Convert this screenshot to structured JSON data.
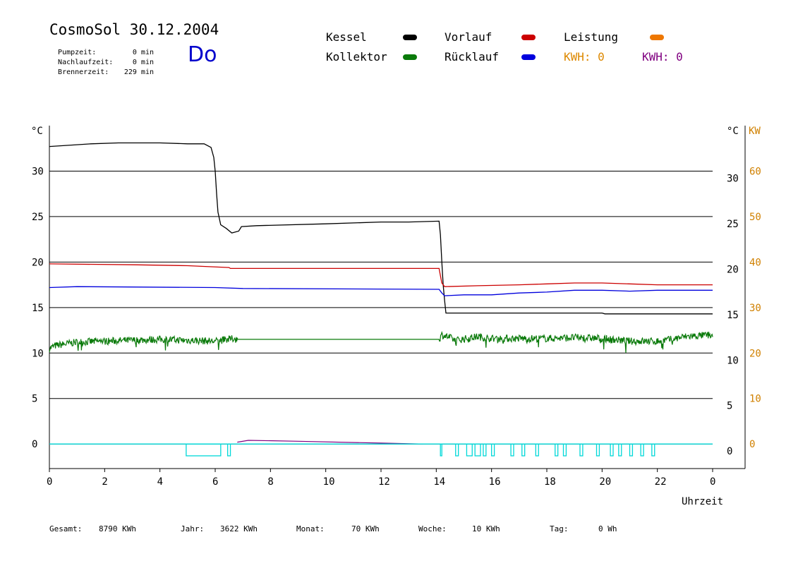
{
  "header": {
    "title": "CosmoSol 30.12.2004",
    "day": "Do",
    "stats": [
      {
        "label": "Pumpzeit:",
        "value": "0 min"
      },
      {
        "label": "Nachlaufzeit:",
        "value": "0 min"
      },
      {
        "label": "Brennerzeit:",
        "value": "229 min"
      }
    ]
  },
  "legend": {
    "kessel": "Kessel",
    "kollektor": "Kollektor",
    "vorlauf": "Vorlauf",
    "ruecklauf": "Rücklauf",
    "leistung": "Leistung",
    "kwh1": "KWH: 0",
    "kwh2": "KWH: 0"
  },
  "colors": {
    "kessel": "#000000",
    "kollektor": "#0a7a0a",
    "vorlauf": "#cc0000",
    "ruecklauf": "#0000dd",
    "leistung": "#ee7700",
    "kwh": "#dd8800",
    "kwh2": "#800080",
    "pump": "#00d8d8",
    "kwAxis": "#d08000"
  },
  "footer": {
    "gesamt_label": "Gesamt:",
    "gesamt": "8790 KWh",
    "jahr_label": "Jahr:",
    "jahr": "3622 KWh",
    "monat_label": "Monat:",
    "monat": "70 KWh",
    "woche_label": "Woche:",
    "woche": "10 KWh",
    "tag_label": "Tag:",
    "tag": "0 Wh"
  },
  "chart_data": {
    "type": "line",
    "xlabel": "Uhrzeit",
    "ylabel_left": "°C",
    "ylabel_right": "°C",
    "ylabel_kw": "KW",
    "xlim": [
      0,
      24
    ],
    "ylim": [
      -2.7,
      35
    ],
    "x_ticks": [
      "0",
      "2",
      "4",
      "6",
      "8",
      "10",
      "12",
      "14",
      "16",
      "18",
      "20",
      "22",
      "0"
    ],
    "y_ticks": [
      0,
      5,
      10,
      15,
      20,
      25,
      30
    ],
    "kw_ticks": [
      0,
      10,
      20,
      30,
      40,
      50,
      60
    ],
    "grid": true,
    "series": [
      {
        "name": "Kessel",
        "key": "kessel",
        "points": [
          [
            0,
            32.7
          ],
          [
            0.5,
            32.8
          ],
          [
            1.5,
            33.0
          ],
          [
            2.5,
            33.1
          ],
          [
            4,
            33.1
          ],
          [
            5,
            33.0
          ],
          [
            5.6,
            33.0
          ],
          [
            5.85,
            32.6
          ],
          [
            5.95,
            31.5
          ],
          [
            6.0,
            30.0
          ],
          [
            6.05,
            27.5
          ],
          [
            6.1,
            25.5
          ],
          [
            6.2,
            24.1
          ],
          [
            6.4,
            23.7
          ],
          [
            6.6,
            23.2
          ],
          [
            6.85,
            23.4
          ],
          [
            6.95,
            23.9
          ],
          [
            7.5,
            24.0
          ],
          [
            10,
            24.2
          ],
          [
            12,
            24.4
          ],
          [
            13,
            24.4
          ],
          [
            14.1,
            24.5
          ],
          [
            14.15,
            23.0
          ],
          [
            14.2,
            20.0
          ],
          [
            14.25,
            17.5
          ],
          [
            14.3,
            15.8
          ],
          [
            14.35,
            14.4
          ],
          [
            20,
            14.4
          ],
          [
            20.1,
            14.3
          ],
          [
            24,
            14.3
          ]
        ]
      },
      {
        "name": "Vorlauf",
        "key": "vorlauf",
        "points": [
          [
            0,
            19.8
          ],
          [
            3,
            19.7
          ],
          [
            5,
            19.6
          ],
          [
            6.5,
            19.4
          ],
          [
            6.55,
            19.3
          ],
          [
            14.1,
            19.3
          ],
          [
            14.15,
            18.5
          ],
          [
            14.2,
            17.7
          ],
          [
            14.3,
            17.3
          ],
          [
            15.5,
            17.4
          ],
          [
            17,
            17.5
          ],
          [
            18,
            17.6
          ],
          [
            19,
            17.7
          ],
          [
            20,
            17.7
          ],
          [
            21,
            17.6
          ],
          [
            22,
            17.5
          ],
          [
            24,
            17.5
          ]
        ]
      },
      {
        "name": "Rücklauf",
        "key": "ruecklauf",
        "points": [
          [
            0,
            17.2
          ],
          [
            1,
            17.3
          ],
          [
            6,
            17.2
          ],
          [
            7,
            17.1
          ],
          [
            14.1,
            17.0
          ],
          [
            14.2,
            16.6
          ],
          [
            14.3,
            16.3
          ],
          [
            15,
            16.4
          ],
          [
            16,
            16.4
          ],
          [
            17,
            16.6
          ],
          [
            18,
            16.7
          ],
          [
            19,
            16.9
          ],
          [
            20,
            16.9
          ],
          [
            21,
            16.8
          ],
          [
            22,
            16.9
          ],
          [
            24,
            16.9
          ]
        ]
      },
      {
        "name": "Kollektor",
        "key": "kollektor",
        "noise": true,
        "points": [
          [
            0,
            10.5
          ],
          [
            0.2,
            10.8
          ],
          [
            1,
            11.2
          ],
          [
            2,
            11.3
          ],
          [
            3,
            11.4
          ],
          [
            4,
            11.5
          ],
          [
            5,
            11.4
          ],
          [
            6,
            11.3
          ],
          [
            6.7,
            11.6
          ],
          [
            6.75,
            11.5
          ],
          [
            14.1,
            11.5
          ],
          [
            14.2,
            12.0
          ],
          [
            14.4,
            11.8
          ],
          [
            14.7,
            11.4
          ],
          [
            15.5,
            11.8
          ],
          [
            16,
            11.6
          ],
          [
            17,
            11.6
          ],
          [
            18,
            11.6
          ],
          [
            19,
            11.7
          ],
          [
            20,
            11.6
          ],
          [
            21,
            11.3
          ],
          [
            22,
            11.3
          ],
          [
            22.5,
            11.5
          ],
          [
            23,
            11.8
          ],
          [
            24,
            12.0
          ]
        ]
      }
    ],
    "leistung_line": [
      [
        6.8,
        0.2
      ],
      [
        7.2,
        0.4
      ],
      [
        9,
        0.3
      ],
      [
        12,
        0.1
      ],
      [
        13.5,
        0.0
      ]
    ],
    "pump_segments": [
      [
        4.95,
        6.2
      ],
      [
        6.45,
        6.55
      ],
      [
        14.15,
        14.2
      ],
      [
        14.7,
        14.8
      ],
      [
        15.1,
        15.3
      ],
      [
        15.4,
        15.6
      ],
      [
        15.7,
        15.8
      ],
      [
        16.0,
        16.1
      ],
      [
        16.7,
        16.8
      ],
      [
        17.1,
        17.2
      ],
      [
        17.6,
        17.7
      ],
      [
        18.3,
        18.4
      ],
      [
        18.6,
        18.7
      ],
      [
        19.2,
        19.3
      ],
      [
        19.8,
        19.9
      ],
      [
        20.3,
        20.4
      ],
      [
        20.6,
        20.7
      ],
      [
        21.0,
        21.1
      ],
      [
        21.4,
        21.5
      ],
      [
        21.8,
        21.9
      ]
    ]
  }
}
